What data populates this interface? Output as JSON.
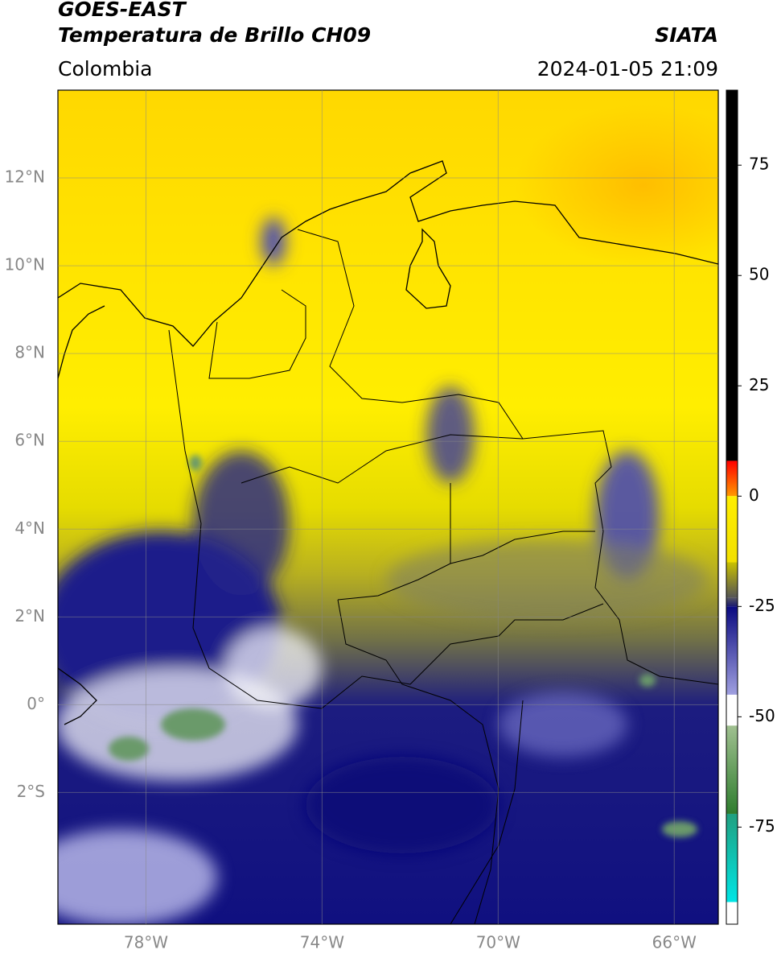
{
  "chart_data": {
    "type": "map",
    "title": "GOES-EAST",
    "subtitle": "Temperatura de Brillo CH09",
    "source": "SIATA",
    "region": "Colombia",
    "datetime": "2024-01-05 21:09",
    "xlim": [
      -80,
      -65
    ],
    "ylim": [
      -5,
      14
    ],
    "xticks": [
      {
        "value": -78,
        "label": "78°W"
      },
      {
        "value": -74,
        "label": "74°W"
      },
      {
        "value": -70,
        "label": "70°W"
      },
      {
        "value": -66,
        "label": "66°W"
      }
    ],
    "yticks": [
      {
        "value": 12,
        "label": "12°N"
      },
      {
        "value": 10,
        "label": "10°N"
      },
      {
        "value": 8,
        "label": "8°N"
      },
      {
        "value": 6,
        "label": "6°N"
      },
      {
        "value": 4,
        "label": "4°N"
      },
      {
        "value": 2,
        "label": "2°N"
      },
      {
        "value": 0,
        "label": "0°"
      },
      {
        "value": -2,
        "label": "2°S"
      }
    ],
    "grid": true,
    "colorbar": {
      "lim": [
        -97,
        92
      ],
      "ticks": [
        75,
        50,
        25,
        0,
        -25,
        -50,
        -75
      ],
      "segments": [
        {
          "from": 8,
          "to": 92,
          "top": "#000000",
          "bottom": "#000000"
        },
        {
          "from": 0,
          "to": 8,
          "top": "#ff0000",
          "bottom": "#ff9900"
        },
        {
          "from": -15,
          "to": 0,
          "top": "#ffee00",
          "bottom": "#f2e000"
        },
        {
          "from": -23,
          "to": -15,
          "top": "#c8c000",
          "bottom": "#555555"
        },
        {
          "from": -25,
          "to": -23,
          "top": "#555560",
          "bottom": "#1a1a70"
        },
        {
          "from": -45,
          "to": -25,
          "top": "#0a0a80",
          "bottom": "#a0a0e0"
        },
        {
          "from": -52,
          "to": -45,
          "top": "#ffffff",
          "bottom": "#ffffff"
        },
        {
          "from": -72,
          "to": -52,
          "top": "#a0c090",
          "bottom": "#2e7d2e"
        },
        {
          "from": -92,
          "to": -72,
          "top": "#20a080",
          "bottom": "#00e5e5"
        },
        {
          "from": -97,
          "to": -92,
          "top": "#ffffff",
          "bottom": "#ffffff"
        }
      ]
    }
  }
}
